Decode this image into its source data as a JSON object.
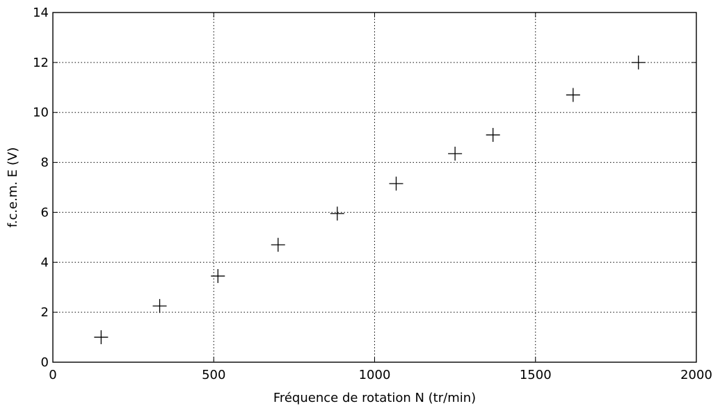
{
  "chart_data": {
    "type": "scatter",
    "marker": "plus",
    "grid": true,
    "grid_style": "dotted",
    "xlabel": "Fréquence de rotation N (tr/min)",
    "ylabel": "f.c.e.m. E (V)",
    "xlim": [
      0,
      2000
    ],
    "ylim": [
      0,
      14
    ],
    "x_ticks": [
      0,
      500,
      1000,
      1500,
      2000
    ],
    "y_ticks": [
      0,
      2,
      4,
      6,
      8,
      10,
      12,
      14
    ],
    "x_tick_labels": [
      "0",
      "500",
      "1000",
      "1500",
      "2000"
    ],
    "y_tick_labels": [
      "0",
      "2",
      "4",
      "6",
      "8",
      "10",
      "12",
      "14"
    ],
    "points": [
      {
        "x": 150,
        "y": 1.0
      },
      {
        "x": 332,
        "y": 2.25
      },
      {
        "x": 513,
        "y": 3.45
      },
      {
        "x": 700,
        "y": 4.7
      },
      {
        "x": 884,
        "y": 5.95
      },
      {
        "x": 1067,
        "y": 7.15
      },
      {
        "x": 1250,
        "y": 8.35
      },
      {
        "x": 1368,
        "y": 9.1
      },
      {
        "x": 1617,
        "y": 10.7
      },
      {
        "x": 1820,
        "y": 12.0
      }
    ],
    "colors": {
      "marker": "#000000",
      "grid": "#000000",
      "axes": "#000000"
    }
  }
}
